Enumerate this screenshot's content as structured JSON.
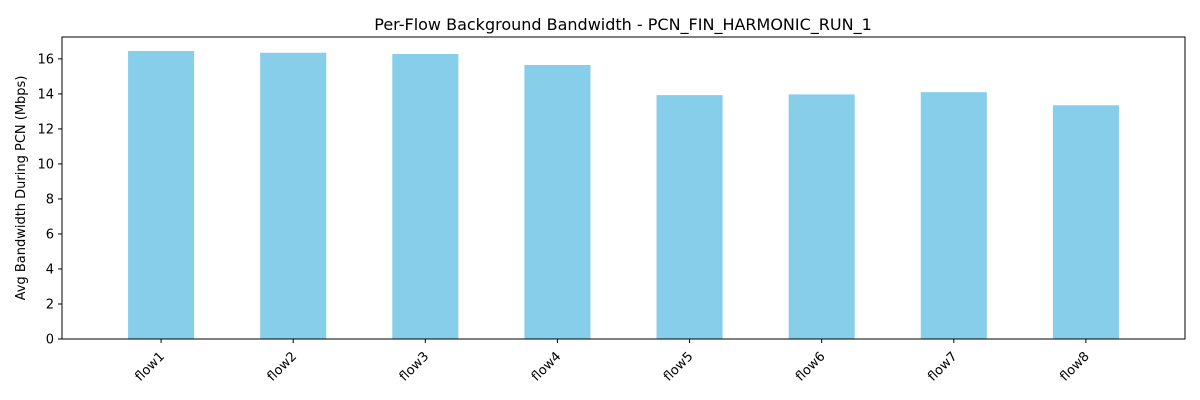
{
  "chart_data": {
    "type": "bar",
    "title": "Per-Flow Background Bandwidth - PCN_FIN_HARMONIC_RUN_1",
    "xlabel": "",
    "ylabel": "Avg Bandwidth During PCN (Mbps)",
    "categories": [
      "flow1",
      "flow2",
      "flow3",
      "flow4",
      "flow5",
      "flow6",
      "flow7",
      "flow8"
    ],
    "values": [
      16.45,
      16.35,
      16.28,
      15.65,
      13.93,
      13.97,
      14.1,
      13.35
    ],
    "ylim": [
      0,
      17.25
    ],
    "yticks": [
      0,
      2,
      4,
      6,
      8,
      10,
      12,
      14,
      16
    ],
    "bar_color": "#87CEEB",
    "grid": false,
    "legend": "none",
    "xtick_rotation": -45
  }
}
